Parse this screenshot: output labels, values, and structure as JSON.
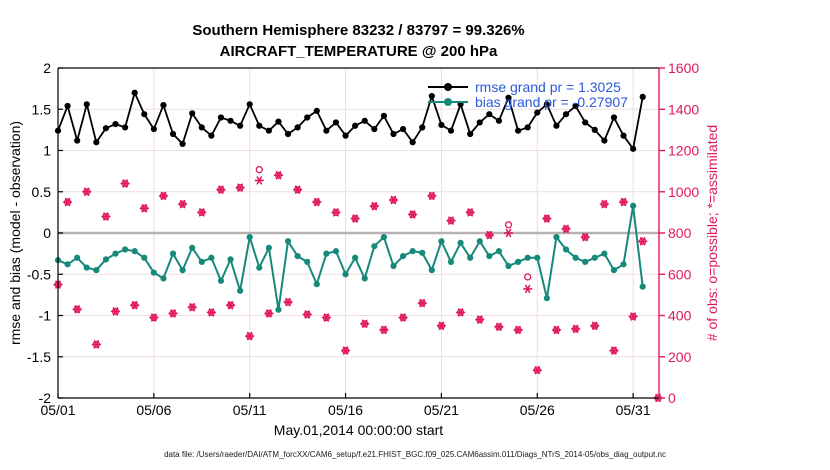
{
  "figure": {
    "title_line1": "Southern Hemisphere 83232 / 83797 = 99.326%",
    "title_line2": "AIRCRAFT_TEMPERATURE @ 200 hPa",
    "xlabel": "May.01,2014 00:00:00 start",
    "ylabel_left": "rmse and bias (model - observation)",
    "ylabel_right": "# of obs: o=possible; *=assimilated",
    "footer": "data file: /Users/raeder/DAI/ATM_forcXX/CAM6_setup/f.e21.FHIST_BGC.f09_025.CAM6assim.011/Diags_NTrS_2014-05/obs_diag_output.nc",
    "legend": [
      {
        "label": "rmse grand pr = 1.3025",
        "color": "#000000"
      },
      {
        "label": "bias grand pr = -0.27907",
        "color": "#17897b"
      }
    ]
  },
  "colors": {
    "rmse": "#000000",
    "bias": "#17897b",
    "obs": "#e0185e",
    "legend_text": "#2b59d8",
    "grid": "#efdde1",
    "zero_line": "#b8b1b2",
    "axis": "#000000",
    "right_axis": "#e0185e"
  },
  "chart_data": {
    "type": "line",
    "title": "Southern Hemisphere 83232 / 83797 = 99.326% | AIRCRAFT_TEMPERATURE @ 200 hPa",
    "xlabel": "May.01,2014 00:00:00 start",
    "ylabel_left": "rmse and bias (model - observation)",
    "ylabel_right": "# of obs: o=possible; *=assimilated",
    "x_domain_days": [
      0,
      31.35
    ],
    "yleft_range": [
      -2,
      2
    ],
    "yright_range": [
      0,
      1600
    ],
    "grid": true,
    "legend_position": "top-right-inside",
    "x_ticks": [
      {
        "t": 0,
        "label": "05/01"
      },
      {
        "t": 5,
        "label": "05/06"
      },
      {
        "t": 10,
        "label": "05/11"
      },
      {
        "t": 15,
        "label": "05/16"
      },
      {
        "t": 20,
        "label": "05/21"
      },
      {
        "t": 25,
        "label": "05/26"
      },
      {
        "t": 30,
        "label": "05/31"
      }
    ],
    "yleft_ticks": [
      {
        "v": 2,
        "label": "2"
      },
      {
        "v": 1.5,
        "label": "1.5"
      },
      {
        "v": 1,
        "label": "1"
      },
      {
        "v": 0.5,
        "label": "0.5"
      },
      {
        "v": 0,
        "label": "0"
      },
      {
        "v": -0.5,
        "label": "-0.5"
      },
      {
        "v": -1,
        "label": "-1"
      },
      {
        "v": -1.5,
        "label": "-1.5"
      },
      {
        "v": -2,
        "label": "-2"
      }
    ],
    "yright_ticks": [
      {
        "v": 1600,
        "label": "1600"
      },
      {
        "v": 1400,
        "label": "1400"
      },
      {
        "v": 1200,
        "label": "1200"
      },
      {
        "v": 1000,
        "label": "1000"
      },
      {
        "v": 800,
        "label": "800"
      },
      {
        "v": 600,
        "label": "600"
      },
      {
        "v": 400,
        "label": "400"
      },
      {
        "v": 200,
        "label": "200"
      },
      {
        "v": 0,
        "label": "0"
      }
    ],
    "time_days": [
      0,
      0.5,
      1,
      1.5,
      2,
      2.5,
      3,
      3.5,
      4,
      4.5,
      5,
      5.5,
      6,
      6.5,
      7,
      7.5,
      8,
      8.5,
      9,
      9.5,
      10,
      10.5,
      11,
      11.5,
      12,
      12.5,
      13,
      13.5,
      14,
      14.5,
      15,
      15.5,
      16,
      16.5,
      17,
      17.5,
      18,
      18.5,
      19,
      19.5,
      20,
      20.5,
      21,
      21.5,
      22,
      22.5,
      23,
      23.5,
      24,
      24.5,
      25,
      25.5,
      26,
      26.5,
      27,
      27.5,
      28,
      28.5,
      29,
      29.5,
      30,
      30.5,
      31.3
    ],
    "series": [
      {
        "name": "rmse",
        "axis": "left",
        "marker": "filled-circle",
        "grand_value": 1.3025,
        "values": [
          1.24,
          1.54,
          1.12,
          1.56,
          1.1,
          1.27,
          1.32,
          1.28,
          1.7,
          1.44,
          1.26,
          1.55,
          1.2,
          1.08,
          1.45,
          1.28,
          1.18,
          1.4,
          1.36,
          1.3,
          1.56,
          1.3,
          1.24,
          1.35,
          1.2,
          1.28,
          1.4,
          1.48,
          1.24,
          1.34,
          1.18,
          1.3,
          1.36,
          1.26,
          1.42,
          1.2,
          1.26,
          1.1,
          1.28,
          1.66,
          1.31,
          1.24,
          1.56,
          1.2,
          1.34,
          1.44,
          1.36,
          1.64,
          1.24,
          1.28,
          1.46,
          1.56,
          1.3,
          1.44,
          1.54,
          1.34,
          1.25,
          1.12,
          1.4,
          1.18,
          1.02,
          1.65,
          null
        ]
      },
      {
        "name": "bias",
        "axis": "left",
        "marker": "filled-circle",
        "grand_value": -0.27907,
        "values": [
          -0.33,
          -0.38,
          -0.3,
          -0.42,
          -0.45,
          -0.32,
          -0.25,
          -0.2,
          -0.22,
          -0.3,
          -0.48,
          -0.55,
          -0.25,
          -0.45,
          -0.18,
          -0.35,
          -0.3,
          -0.58,
          -0.32,
          -0.7,
          -0.05,
          -0.42,
          -0.18,
          -0.93,
          -0.1,
          -0.28,
          -0.35,
          -0.62,
          -0.25,
          -0.22,
          -0.5,
          -0.3,
          -0.55,
          -0.16,
          -0.05,
          -0.4,
          -0.28,
          -0.22,
          -0.24,
          -0.45,
          -0.1,
          -0.35,
          -0.12,
          -0.3,
          -0.1,
          -0.28,
          -0.22,
          -0.4,
          -0.35,
          -0.3,
          -0.3,
          -0.79,
          -0.05,
          -0.2,
          -0.3,
          -0.35,
          -0.3,
          -0.25,
          -0.45,
          -0.38,
          0.33,
          -0.65,
          null
        ]
      },
      {
        "name": "possible_obs",
        "axis": "right",
        "marker": "open-circle",
        "values": [
          550,
          950,
          430,
          1000,
          260,
          880,
          420,
          1040,
          450,
          920,
          390,
          980,
          410,
          940,
          440,
          900,
          415,
          1010,
          450,
          1020,
          300,
          1107,
          410,
          1080,
          465,
          1010,
          405,
          950,
          390,
          900,
          230,
          870,
          360,
          930,
          330,
          960,
          390,
          890,
          460,
          980,
          350,
          860,
          415,
          900,
          380,
          790,
          345,
          840,
          330,
          587,
          135,
          870,
          330,
          820,
          335,
          780,
          350,
          940,
          230,
          950,
          395,
          760,
          0
        ]
      },
      {
        "name": "assimilated_obs",
        "axis": "right",
        "marker": "asterisk",
        "values": [
          550,
          950,
          430,
          1000,
          260,
          880,
          420,
          1040,
          450,
          920,
          390,
          980,
          410,
          940,
          440,
          900,
          415,
          1010,
          450,
          1020,
          300,
          1055,
          410,
          1080,
          465,
          1010,
          405,
          950,
          390,
          900,
          230,
          870,
          360,
          930,
          330,
          960,
          390,
          890,
          460,
          980,
          350,
          860,
          415,
          900,
          380,
          790,
          345,
          800,
          330,
          529,
          135,
          870,
          330,
          820,
          335,
          780,
          350,
          940,
          230,
          950,
          395,
          760,
          0
        ]
      }
    ]
  }
}
